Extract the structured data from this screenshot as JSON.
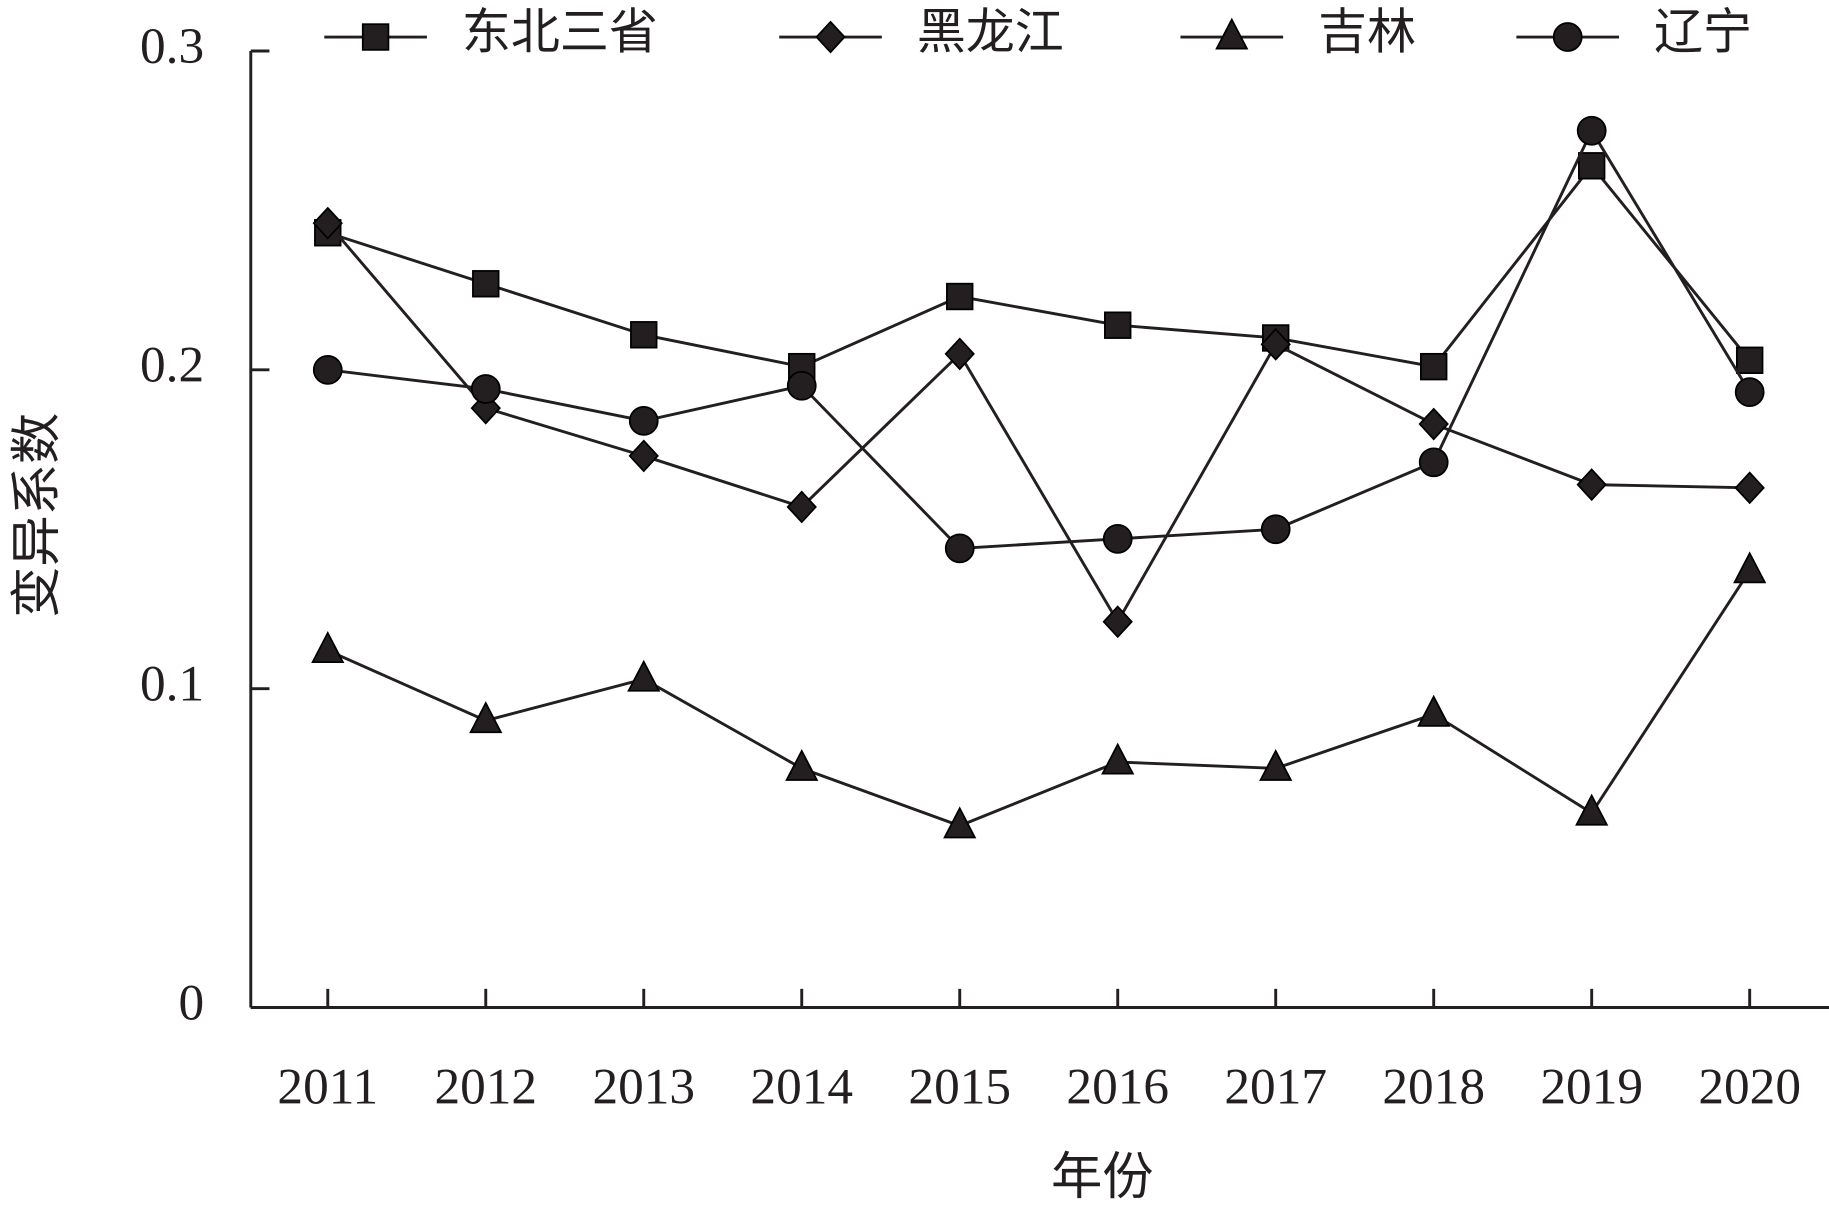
{
  "chart_data": {
    "type": "line",
    "x_label": "年份",
    "y_label": "变异系数",
    "categories": [
      "2011",
      "2012",
      "2013",
      "2014",
      "2015",
      "2016",
      "2017",
      "2018",
      "2019",
      "2020"
    ],
    "series": [
      {
        "name": "东北三省",
        "color": "#231f20",
        "marker": "square",
        "values": [
          0.243,
          0.227,
          0.211,
          0.201,
          0.223,
          0.214,
          0.21,
          0.201,
          0.264,
          0.203
        ]
      },
      {
        "name": "黑龙江",
        "color": "#231f20",
        "marker": "diamond",
        "values": [
          0.246,
          0.188,
          0.173,
          0.157,
          0.205,
          0.121,
          0.208,
          0.183,
          0.164,
          0.163
        ]
      },
      {
        "name": "吉林",
        "color": "#231f20",
        "marker": "triangle",
        "values": [
          0.112,
          0.09,
          0.103,
          0.075,
          0.057,
          0.077,
          0.075,
          0.092,
          0.061,
          0.137
        ]
      },
      {
        "name": "辽宁",
        "color": "#231f20",
        "marker": "circle",
        "values": [
          0.2,
          0.194,
          0.184,
          0.195,
          0.144,
          0.147,
          0.15,
          0.171,
          0.275,
          0.193
        ]
      }
    ],
    "ylim": [
      0,
      0.3
    ],
    "yticks": [
      {
        "value": 0,
        "label": "0"
      },
      {
        "value": 0.1,
        "label": "0.1"
      },
      {
        "value": 0.2,
        "label": "0.2"
      },
      {
        "value": 0.3,
        "label": "0.3"
      }
    ],
    "grid": false,
    "legend": "top"
  }
}
